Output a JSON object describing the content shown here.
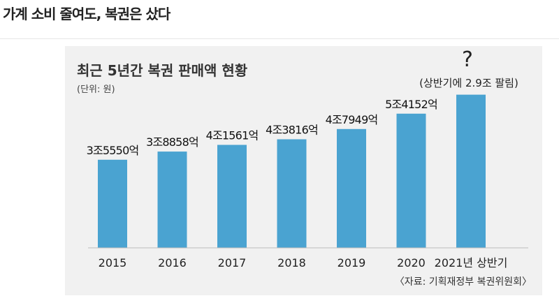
{
  "article": {
    "headline": "가계 소비 줄여도, 복권은 샀다"
  },
  "chart_data": {
    "type": "bar",
    "title": "최근 5년간 복권 판매액 현황",
    "unit": "(단위: 원)",
    "categories": [
      "2015",
      "2016",
      "2017",
      "2018",
      "2019",
      "2020",
      "2021년 상반기"
    ],
    "values": [
      35550,
      38858,
      41561,
      43816,
      47949,
      54152,
      null
    ],
    "value_unit": "억원",
    "data_labels": [
      "3조5550억",
      "3조8858억",
      "4조1561억",
      "4조3816억",
      "4조7949억",
      "5조4152억",
      ""
    ],
    "last_bar_height_value": 61800,
    "question_mark": "?",
    "annotation": "(상반기에 2.9조 팔림)",
    "source": "〈자료: 기획재정부 복권위원회〉",
    "bar_color": "#4aa3d1",
    "ylim": [
      0,
      70000
    ],
    "grid": false,
    "legend": "none"
  }
}
